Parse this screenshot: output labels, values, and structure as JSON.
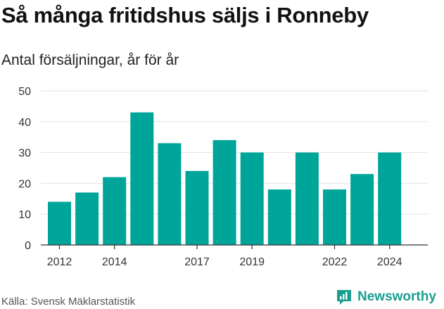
{
  "title": "Så många fritidshus säljs i Ronneby",
  "subtitle": "Antal försäljningar, år för år",
  "source": "Källa: Svensk Mäklarstatistik",
  "brand": {
    "name": "Newsworthy",
    "icon": "newsworthy-logo-icon"
  },
  "colors": {
    "bar": "#00a59a",
    "grid": "#e2e2e2",
    "axis": "#333333",
    "brand": "#1a9e91"
  },
  "chart_data": {
    "type": "bar",
    "title": "Så många fritidshus säljs i Ronneby",
    "subtitle": "Antal försäljningar, år för år",
    "x": [
      2012,
      2013,
      2014,
      2015,
      2016,
      2017,
      2018,
      2019,
      2020,
      2021,
      2022,
      2023,
      2024
    ],
    "values": [
      14,
      17,
      22,
      43,
      33,
      24,
      34,
      30,
      18,
      30,
      18,
      23,
      30
    ],
    "x_tick_labels": [
      "2012",
      "2014",
      "2017",
      "2019",
      "2022",
      "2024"
    ],
    "x_tick_years": [
      2012,
      2014,
      2017,
      2019,
      2022,
      2024
    ],
    "y_ticks": [
      0,
      10,
      20,
      30,
      40,
      50
    ],
    "ylim": [
      0,
      50
    ],
    "grid": true,
    "legend": "none"
  }
}
